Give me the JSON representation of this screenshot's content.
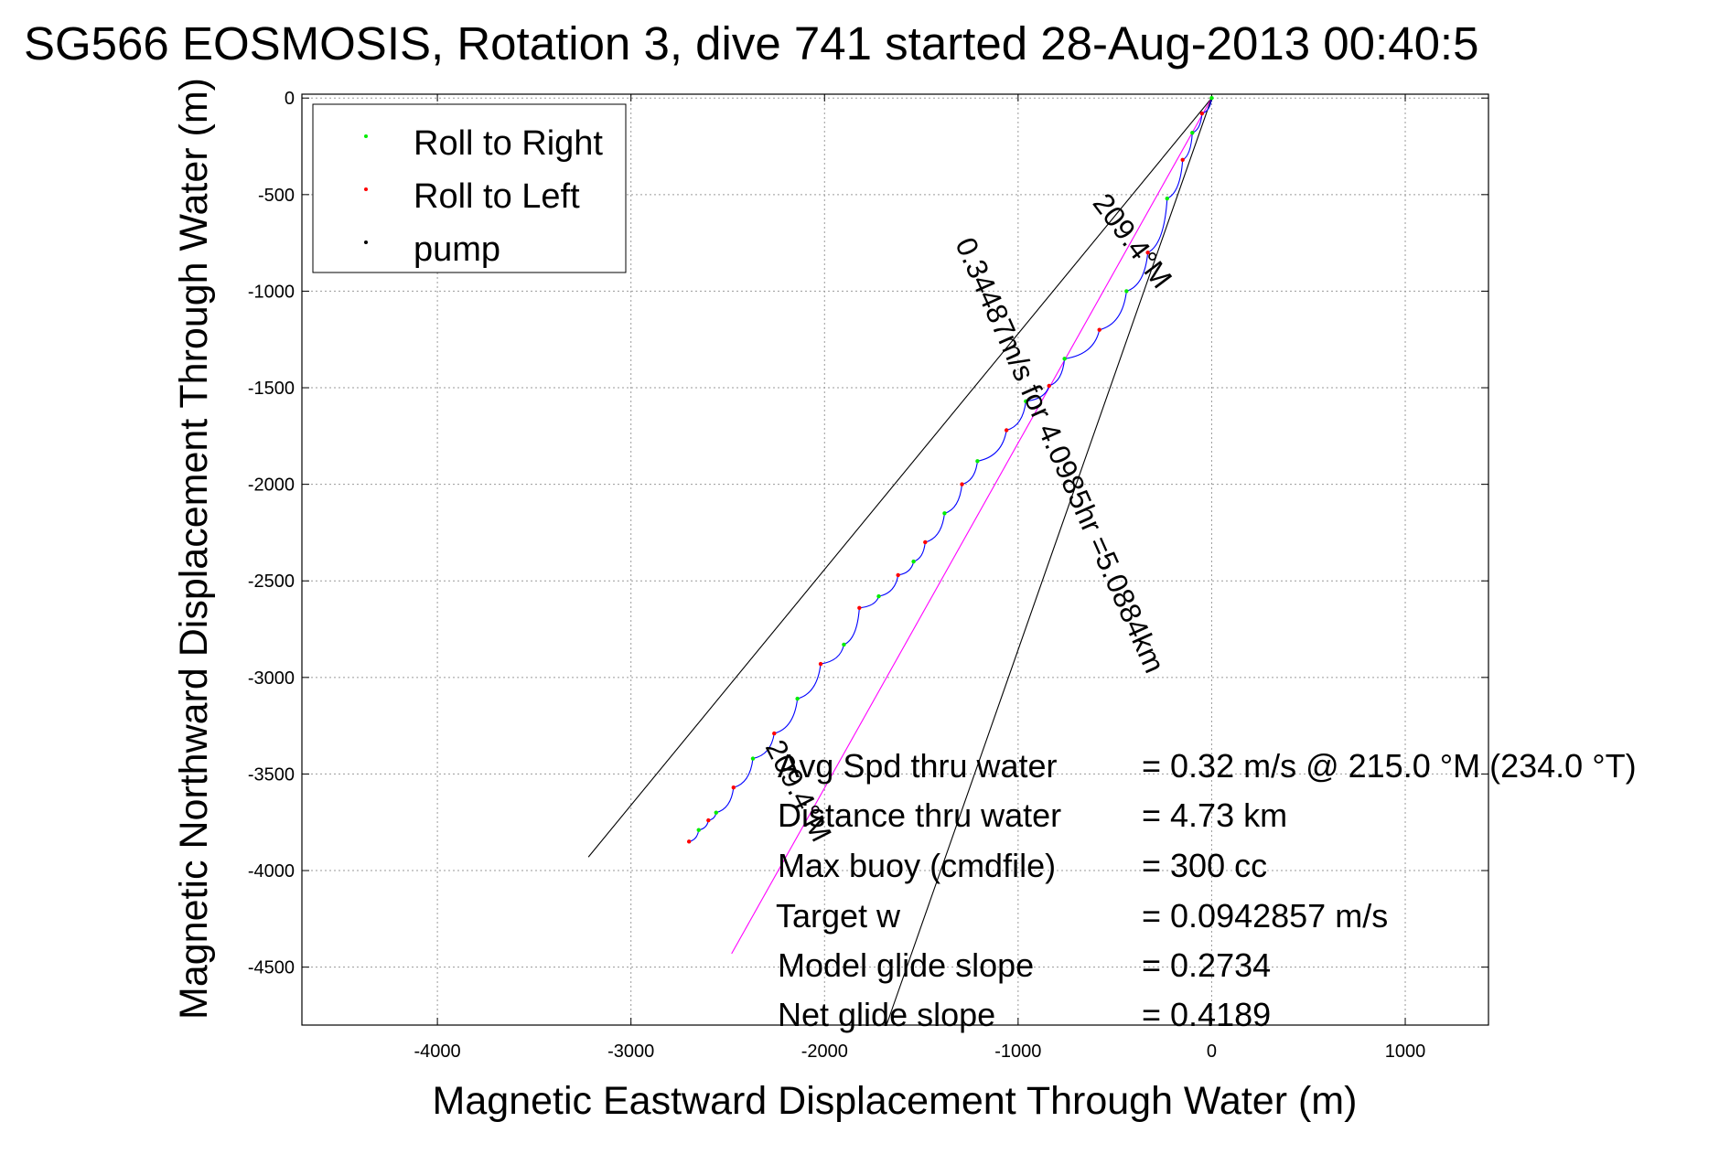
{
  "chart_data": {
    "type": "line",
    "title": "SG566 EOSMOSIS, Rotation 3, dive 741 started 28-Aug-2013 00:40:5",
    "xlabel": "Magnetic Eastward Displacement Through Water (m)",
    "ylabel": "Magnetic Northward Displacement Through Water (m)",
    "xlim": [
      -4700,
      1430
    ],
    "ylim": [
      -4800,
      20
    ],
    "xticks": [
      -4000,
      -3000,
      -2000,
      -1000,
      0,
      1000
    ],
    "yticks": [
      0,
      -500,
      -1000,
      -1500,
      -2000,
      -2500,
      -3000,
      -3500,
      -4000,
      -4500
    ],
    "grid": true,
    "legend": {
      "placement": "top-left",
      "entries": [
        {
          "label": "Roll to Right",
          "color": "#00ee00"
        },
        {
          "label": "Roll to Left",
          "color": "#ff0000"
        },
        {
          "label": "pump",
          "color": "#000000"
        }
      ]
    },
    "track": {
      "color": "#0000ff",
      "x": [
        0,
        -50,
        -100,
        -150,
        -230,
        -330,
        -440,
        -580,
        -760,
        -840,
        -960,
        -1060,
        -1210,
        -1290,
        -1380,
        -1480,
        -1540,
        -1620,
        -1720,
        -1820,
        -1900,
        -2020,
        -2140,
        -2260,
        -2370,
        -2470,
        -2560,
        -2600,
        -2650,
        -2700
      ],
      "y": [
        0,
        -80,
        -180,
        -320,
        -520,
        -800,
        -1000,
        -1200,
        -1350,
        -1490,
        -1570,
        -1720,
        -1880,
        -2000,
        -2150,
        -2300,
        -2400,
        -2470,
        -2580,
        -2640,
        -2830,
        -2930,
        -3110,
        -3290,
        -3420,
        -3570,
        -3700,
        -3740,
        -3790,
        -3850
      ]
    },
    "lines": [
      {
        "name": "heading-line",
        "color": "#000000",
        "x": [
          0,
          -3220
        ],
        "y": [
          0,
          -3930
        ]
      },
      {
        "name": "current-line",
        "color": "#ff00ff",
        "x": [
          0,
          -2480
        ],
        "y": [
          0,
          -4430
        ]
      },
      {
        "name": "mirror-line",
        "color": "#000000",
        "x": [
          0,
          -1680
        ],
        "y": [
          0,
          -4800
        ]
      }
    ],
    "annotations": [
      {
        "text": "209.4°M",
        "x": -450,
        "y": -770,
        "angle": 53
      },
      {
        "text": "0.34487m/s for 4.0985hr =5.0884km",
        "x": -830,
        "y": -1870,
        "angle": 66
      },
      {
        "text": "209.4°M",
        "x": -2180,
        "y": -3610,
        "angle": 63
      }
    ],
    "stats": [
      {
        "label": "Avg Spd thru water",
        "value": "=  0.32 m/s @ 215.0 °M (234.0 °T)"
      },
      {
        "label": "Distance thru water",
        "value": "=  4.73 km"
      },
      {
        "label": "Max buoy (cmdfile)",
        "value": "= 300 cc"
      },
      {
        "label": "Target w",
        "value": "= 0.0942857 m/s"
      },
      {
        "label": "Model glide slope",
        "value": "= 0.2734"
      },
      {
        "label": "Net glide slope",
        "value": "= 0.4189"
      }
    ]
  }
}
